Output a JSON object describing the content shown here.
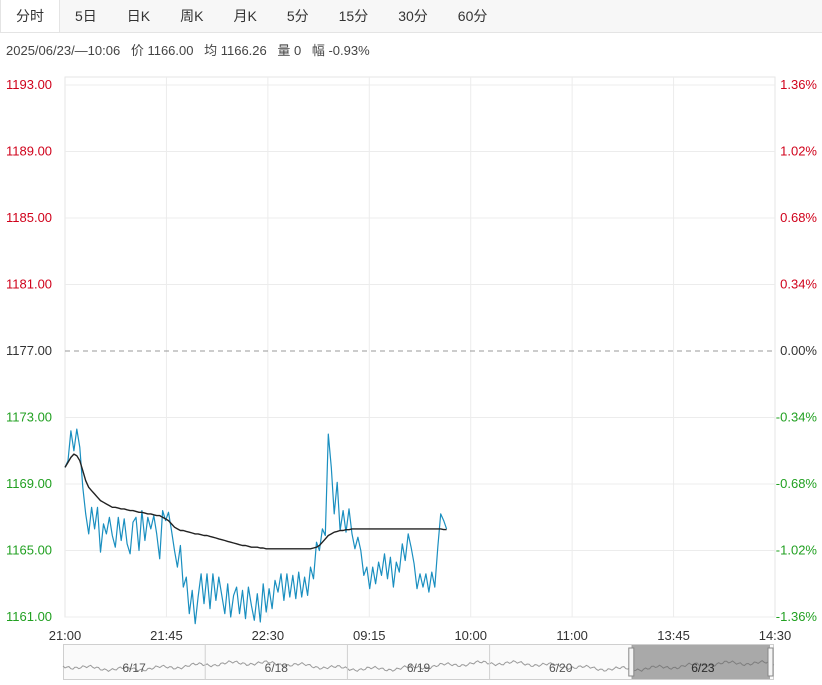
{
  "tabs": [
    "分时",
    "5日",
    "日K",
    "周K",
    "月K",
    "5分",
    "15分",
    "30分",
    "60分"
  ],
  "info": {
    "datetime": "2025/06/23/—10:06",
    "price": "价 1166.00",
    "avg": "均 1166.26",
    "volume": "量 0",
    "change": "幅 -0.93%"
  },
  "colors": {
    "price_line": "#1a8fc0",
    "avg_line": "#222222",
    "up_label": "#d0021b",
    "down_label": "#21a021",
    "base_label": "#333333",
    "grid": "#ececec"
  },
  "chart_data": {
    "type": "line",
    "base_price": 1177.0,
    "ylim": [
      1161.0,
      1193.0
    ],
    "y_ticks_left": [
      "1193.00",
      "1189.00",
      "1185.00",
      "1181.00",
      "1177.00",
      "1173.00",
      "1169.00",
      "1165.00",
      "1161.00"
    ],
    "y_ticks_right": [
      "1.36%",
      "1.02%",
      "0.68%",
      "0.34%",
      "0.00%",
      "-0.34%",
      "-0.68%",
      "-1.02%",
      "-1.36%"
    ],
    "x_ticks": [
      "21:00",
      "21:45",
      "22:30",
      "09:15",
      "10:00",
      "11:00",
      "13:45",
      "14:30"
    ],
    "series": [
      {
        "values": [
          1170.0,
          1170.4,
          1172.2,
          1171.0,
          1172.3,
          1171.2,
          1168.8,
          1167.2,
          1166.0,
          1167.6,
          1166.3,
          1167.6,
          1164.9,
          1166.6,
          1166.0,
          1167.0,
          1165.9,
          1165.2,
          1167.0,
          1165.6,
          1166.9,
          1165.4,
          1164.8,
          1166.7,
          1167.0,
          1165.0,
          1167.4,
          1165.6,
          1167.0,
          1166.3,
          1167.1,
          1166.0,
          1164.5,
          1167.4,
          1166.8,
          1167.3,
          1166.2,
          1165.0,
          1164.0,
          1165.3,
          1162.8,
          1163.4,
          1161.2,
          1162.6,
          1160.6,
          1162.2,
          1163.6,
          1161.8,
          1163.6,
          1161.5,
          1163.6,
          1162.0,
          1163.4,
          1162.3,
          1161.2,
          1163.0,
          1161.0,
          1162.3,
          1162.8,
          1161.2,
          1162.6,
          1160.9,
          1162.8,
          1161.7,
          1160.8,
          1162.4,
          1160.7,
          1163.0,
          1161.3,
          1162.7,
          1161.5,
          1163.2,
          1162.5,
          1163.6,
          1162.0,
          1163.6,
          1162.2,
          1163.5,
          1162.1,
          1163.7,
          1162.2,
          1163.4,
          1162.3,
          1164.0,
          1163.3,
          1165.5,
          1165.0,
          1166.3,
          1165.9,
          1172.0,
          1170.0,
          1167.2,
          1169.1,
          1166.2,
          1167.4,
          1166.1,
          1167.5,
          1166.0,
          1165.1,
          1165.8,
          1165.0,
          1163.5,
          1164.0,
          1162.7,
          1164.0,
          1163.0,
          1164.3,
          1163.5,
          1164.8,
          1163.3,
          1164.6,
          1162.8,
          1164.3,
          1163.7,
          1165.4,
          1164.4,
          1166.0,
          1165.2,
          1164.2,
          1162.7,
          1163.6,
          1162.8,
          1163.6,
          1162.5,
          1163.7,
          1162.8,
          1165.2,
          1167.2,
          1166.8,
          1166.3
        ],
        "color": "#1a8fc0"
      },
      {
        "values": [
          1170.0,
          1170.3,
          1170.6,
          1170.8,
          1170.7,
          1170.4,
          1169.8,
          1169.2,
          1168.8,
          1168.6,
          1168.4,
          1168.2,
          1168.0,
          1167.9,
          1167.8,
          1167.7,
          1167.6,
          1167.6,
          1167.55,
          1167.5,
          1167.5,
          1167.45,
          1167.4,
          1167.4,
          1167.35,
          1167.3,
          1167.3,
          1167.25,
          1167.2,
          1167.2,
          1167.15,
          1167.1,
          1167.1,
          1167.0,
          1166.9,
          1166.8,
          1166.6,
          1166.4,
          1166.3,
          1166.2,
          1166.2,
          1166.15,
          1166.1,
          1166.05,
          1166.0,
          1166.0,
          1165.95,
          1165.9,
          1165.9,
          1165.85,
          1165.8,
          1165.75,
          1165.7,
          1165.65,
          1165.6,
          1165.55,
          1165.5,
          1165.45,
          1165.4,
          1165.35,
          1165.3,
          1165.3,
          1165.25,
          1165.2,
          1165.2,
          1165.2,
          1165.15,
          1165.15,
          1165.1,
          1165.1,
          1165.1,
          1165.1,
          1165.1,
          1165.1,
          1165.1,
          1165.1,
          1165.1,
          1165.1,
          1165.1,
          1165.1,
          1165.1,
          1165.1,
          1165.1,
          1165.1,
          1165.15,
          1165.2,
          1165.3,
          1165.5,
          1165.7,
          1165.9,
          1166.0,
          1166.1,
          1166.15,
          1166.2,
          1166.2,
          1166.25,
          1166.25,
          1166.3,
          1166.3,
          1166.3,
          1166.3,
          1166.3,
          1166.3,
          1166.3,
          1166.3,
          1166.3,
          1166.3,
          1166.3,
          1166.3,
          1166.3,
          1166.3,
          1166.3,
          1166.3,
          1166.3,
          1166.3,
          1166.3,
          1166.3,
          1166.3,
          1166.3,
          1166.3,
          1166.3,
          1166.3,
          1166.3,
          1166.3,
          1166.3,
          1166.3,
          1166.3,
          1166.3,
          1166.26,
          1166.26
        ],
        "color": "#222222"
      }
    ],
    "navigator_labels": [
      "6/17",
      "6/18",
      "6/19",
      "6/20",
      "6/23"
    ],
    "grid": true
  }
}
